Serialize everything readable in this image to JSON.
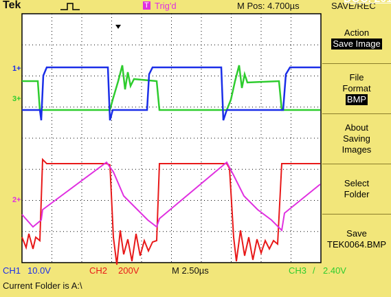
{
  "header": {
    "brand": "Tek",
    "trigger_icon": "T",
    "trigger_status": "Trig'd",
    "position": "M Pos: 4.700µs",
    "menu_title": "SAVE/REC",
    "corner_text": "DOC. 2015"
  },
  "markers": [
    "1+",
    "3+",
    "2+"
  ],
  "menu": [
    {
      "label": "Action",
      "value": "Save Image"
    },
    {
      "label": "File Format",
      "value": "BMP"
    },
    {
      "label": "About Saving Images"
    },
    {
      "label": "Select Folder"
    },
    {
      "label": "Save",
      "value": "TEK0064.BMP"
    }
  ],
  "footer": {
    "ch1": "CH1",
    "ch1_scale": "10.0V",
    "ch2": "CH2",
    "ch2_scale": "200V",
    "timebase": "M 2.50µs",
    "ch3": "CH3",
    "ch3_slope": "/",
    "ch3_level": "2.40V",
    "folder": "Current Folder is A:\\"
  }
}
